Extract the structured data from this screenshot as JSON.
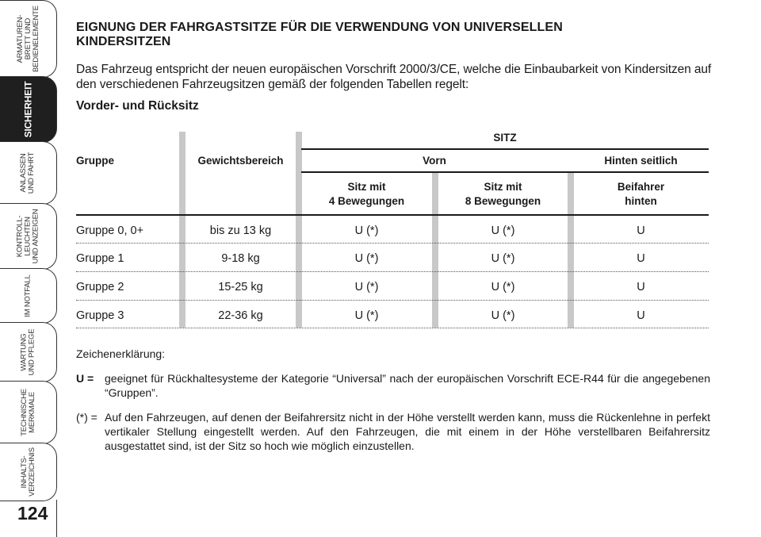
{
  "sidebar": {
    "tabs": [
      {
        "label": "ARMATUREN-\nBRETT UND\nBEDIENELEMENTE"
      },
      {
        "label": "SICHERHEIT"
      },
      {
        "label": "ANLASSEN\nUND FAHRT"
      },
      {
        "label": "KONTROLL-\nLEUCHTEN\nUND ANZEIGEN"
      },
      {
        "label": "IM NOTFALL"
      },
      {
        "label": "WARTUNG\nUND PFLEGE"
      },
      {
        "label": "TECHNISCHE\nMERKMALE"
      },
      {
        "label": "INHALTS-\nVERZEICHNIS"
      }
    ],
    "page_number": "124"
  },
  "page": {
    "title_line1": "EIGNUNG DER FAHRGASTSITZE FÜR DIE VERWENDUNG VON UNIVERSELLEN",
    "title_line2": "KINDERSITZEN",
    "intro": "Das Fahrzeug entspricht der neuen europäischen Vorschrift 2000/3/CE, welche die Einbaubarkeit von Kindersitzen auf den verschiedenen Fahrzeugsitzen gemäß der folgenden Tabellen regelt:",
    "subheading": "Vorder- und Rücksitz"
  },
  "table": {
    "header": {
      "sitz": "SITZ",
      "gruppe": "Gruppe",
      "gewicht": "Gewichtsbereich",
      "vorn": "Vorn",
      "hinten": "Hinten seitlich",
      "col_a_l1": "Sitz mit",
      "col_a_l2": "4 Bewegungen",
      "col_b_l1": "Sitz mit",
      "col_b_l2": "8 Bewegungen",
      "col_c_l1": "Beifahrer",
      "col_c_l2": "hinten"
    },
    "rows": [
      {
        "gruppe": "Gruppe 0, 0+",
        "gewicht": "bis zu 13 kg",
        "a": "U (*)",
        "b": "U (*)",
        "c": "U"
      },
      {
        "gruppe": "Gruppe 1",
        "gewicht": "9-18 kg",
        "a": "U (*)",
        "b": "U (*)",
        "c": "U"
      },
      {
        "gruppe": "Gruppe 2",
        "gewicht": "15-25 kg",
        "a": "U (*)",
        "b": "U (*)",
        "c": "U"
      },
      {
        "gruppe": "Gruppe 3",
        "gewicht": "22-36 kg",
        "a": "U (*)",
        "b": "U (*)",
        "c": "U"
      }
    ]
  },
  "legend": {
    "heading": "Zeichenerklärung:",
    "u_key": "U =",
    "u_text": "geeignet für Rückhaltesysteme der Kategorie “Universal” nach der europäischen Vorschrift ECE-R44 für die angegebenen “Gruppen”.",
    "star_key": "(*) =",
    "star_text": "Auf den Fahrzeugen, auf denen der Beifahrersitz nicht in der Höhe verstellt werden kann, muss die Rückenlehne in perfekt vertikaler Stellung eingestellt werden. Auf den Fahrzeugen, die mit einem in der Höhe verstellbaren Beifahrersitz ausgestattet sind, ist der Sitz so hoch wie möglich einzustellen."
  }
}
